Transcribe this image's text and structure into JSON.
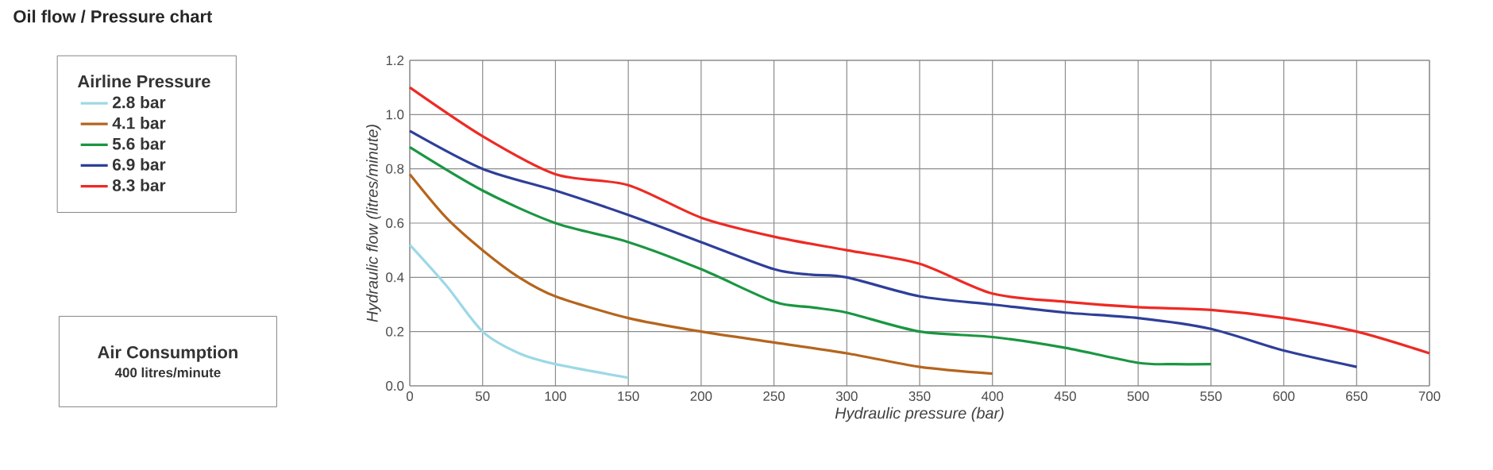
{
  "chart_data": {
    "type": "line",
    "title": "Oil flow / Pressure chart",
    "xlabel": "Hydraulic pressure (bar)",
    "ylabel": "Hydraulic flow (litres/minute)",
    "legend_title": "Airline Pressure",
    "annotations": [
      "Air Consumption",
      "400 litres/minute"
    ],
    "xlim": [
      0,
      700
    ],
    "xticks": [
      0,
      50,
      100,
      150,
      200,
      250,
      300,
      350,
      400,
      450,
      500,
      550,
      600,
      650,
      700
    ],
    "ylim": [
      0,
      1.2
    ],
    "yticks": [
      {
        "value": 0,
        "label": "0.0"
      },
      {
        "value": 0.2,
        "label": "0.2"
      },
      {
        "value": 0.4,
        "label": "0.4"
      },
      {
        "value": 0.6,
        "label": "0.6"
      },
      {
        "value": 0.8,
        "label": "0.8"
      },
      {
        "value": 1.0,
        "label": "1.0"
      },
      {
        "value": 1.2,
        "label": "1.2"
      }
    ],
    "grid": true,
    "legend": "left",
    "series": [
      {
        "name": "2.8 bar",
        "color": "#9dd8e6",
        "x": [
          0,
          25,
          50,
          75,
          100,
          150
        ],
        "values": [
          0.52,
          0.37,
          0.2,
          0.12,
          0.08,
          0.03
        ]
      },
      {
        "name": "4.1 bar",
        "color": "#b5651d",
        "x": [
          0,
          25,
          50,
          75,
          100,
          150,
          200,
          250,
          300,
          350,
          400
        ],
        "values": [
          0.78,
          0.62,
          0.5,
          0.4,
          0.33,
          0.25,
          0.2,
          0.16,
          0.12,
          0.07,
          0.045
        ]
      },
      {
        "name": "5.6 bar",
        "color": "#1a9641",
        "x": [
          0,
          50,
          100,
          150,
          200,
          250,
          275,
          300,
          350,
          400,
          450,
          500,
          525,
          550
        ],
        "values": [
          0.88,
          0.72,
          0.6,
          0.53,
          0.43,
          0.31,
          0.29,
          0.27,
          0.2,
          0.18,
          0.14,
          0.085,
          0.08,
          0.08
        ]
      },
      {
        "name": "6.9 bar",
        "color": "#2e3f99",
        "x": [
          0,
          50,
          100,
          150,
          200,
          250,
          275,
          300,
          350,
          400,
          450,
          500,
          550,
          600,
          650
        ],
        "values": [
          0.94,
          0.8,
          0.72,
          0.63,
          0.53,
          0.43,
          0.41,
          0.4,
          0.33,
          0.3,
          0.27,
          0.25,
          0.21,
          0.13,
          0.07
        ]
      },
      {
        "name": "8.3 bar",
        "color": "#ee2a24",
        "x": [
          0,
          50,
          100,
          150,
          200,
          250,
          300,
          350,
          400,
          450,
          500,
          550,
          600,
          650,
          700
        ],
        "values": [
          1.1,
          0.92,
          0.78,
          0.74,
          0.62,
          0.55,
          0.5,
          0.45,
          0.34,
          0.31,
          0.29,
          0.28,
          0.25,
          0.2,
          0.12
        ]
      }
    ]
  }
}
